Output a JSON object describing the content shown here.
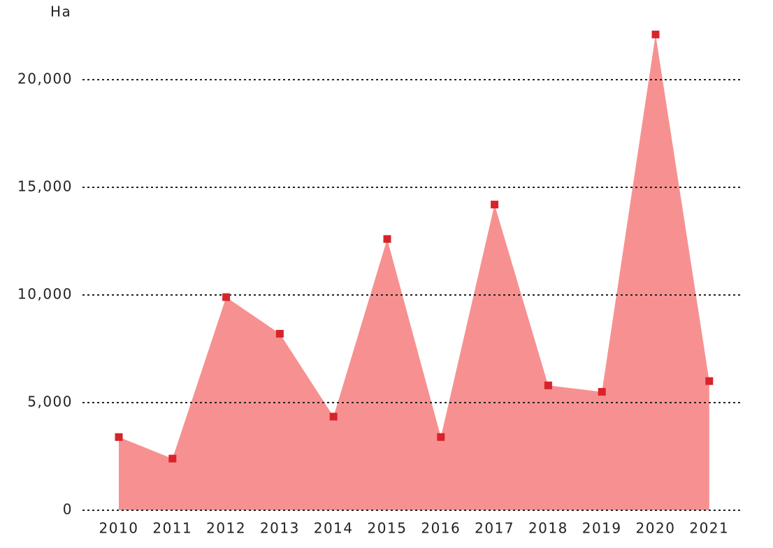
{
  "chart_data": {
    "type": "area",
    "y_label": "Ha",
    "categories": [
      "2010",
      "2011",
      "2012",
      "2013",
      "2014",
      "2015",
      "2016",
      "2017",
      "2018",
      "2019",
      "2020",
      "2021"
    ],
    "values": [
      3400,
      2400,
      9900,
      8200,
      4350,
      12600,
      3400,
      14200,
      5800,
      5500,
      22100,
      6000
    ],
    "color": "#f79191",
    "marker_color": "#d9232a",
    "ylim": [
      0,
      22500
    ],
    "yticks": [
      0,
      {
        "value": 5000,
        "label": "5,000"
      },
      {
        "value": 10000,
        "label": "10,000"
      },
      {
        "value": 15000,
        "label": "15,000"
      },
      {
        "value": 20000,
        "label": "20,000"
      }
    ],
    "grid": true
  }
}
